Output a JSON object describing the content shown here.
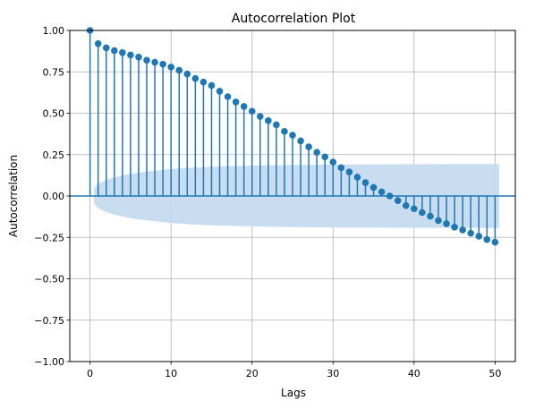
{
  "chart_data": {
    "type": "stem",
    "title": "Autocorrelation Plot",
    "xlabel": "Lags",
    "ylabel": "Autocorrelation",
    "xlim": [
      -2.5,
      52.5
    ],
    "ylim": [
      -1.0,
      1.0
    ],
    "xticks": [
      0,
      10,
      20,
      30,
      40,
      50
    ],
    "yticks": [
      -1.0,
      -0.75,
      -0.5,
      -0.25,
      0.0,
      0.25,
      0.5,
      0.75,
      1.0
    ],
    "ytick_labels": [
      "−1.00",
      "−0.75",
      "−0.50",
      "−0.25",
      "0.00",
      "0.25",
      "0.50",
      "0.75",
      "1.00"
    ],
    "xtick_labels": [
      "0",
      "10",
      "20",
      "30",
      "40",
      "50"
    ],
    "grid": true,
    "lags": [
      0,
      1,
      2,
      3,
      4,
      5,
      6,
      7,
      8,
      9,
      10,
      11,
      12,
      13,
      14,
      15,
      16,
      17,
      18,
      19,
      20,
      21,
      22,
      23,
      24,
      25,
      26,
      27,
      28,
      29,
      30,
      31,
      32,
      33,
      34,
      35,
      36,
      37,
      38,
      39,
      40,
      41,
      42,
      43,
      44,
      45,
      46,
      47,
      48,
      49,
      50
    ],
    "values": [
      1.0,
      0.92,
      0.895,
      0.878,
      0.866,
      0.852,
      0.839,
      0.82,
      0.808,
      0.796,
      0.779,
      0.759,
      0.737,
      0.71,
      0.688,
      0.667,
      0.633,
      0.6,
      0.568,
      0.541,
      0.512,
      0.481,
      0.455,
      0.43,
      0.39,
      0.367,
      0.333,
      0.297,
      0.264,
      0.236,
      0.205,
      0.171,
      0.145,
      0.114,
      0.081,
      0.052,
      0.025,
      0.0,
      -0.028,
      -0.058,
      -0.077,
      -0.1,
      -0.122,
      -0.148,
      -0.167,
      -0.188,
      -0.205,
      -0.225,
      -0.243,
      -0.263,
      -0.279
    ],
    "confidence_band": {
      "lags": [
        0.5,
        1,
        2,
        3,
        4,
        5,
        6,
        8,
        10,
        12,
        15,
        20,
        25,
        30,
        35,
        40,
        45,
        50,
        50.5
      ],
      "upper": [
        0.045,
        0.075,
        0.097,
        0.112,
        0.124,
        0.133,
        0.141,
        0.153,
        0.163,
        0.17,
        0.177,
        0.184,
        0.188,
        0.19,
        0.191,
        0.192,
        0.193,
        0.193,
        0.193
      ]
    },
    "colors": {
      "stem": "#1f77b4",
      "band": "#c6dbef",
      "grid": "#b0b0b0"
    }
  }
}
